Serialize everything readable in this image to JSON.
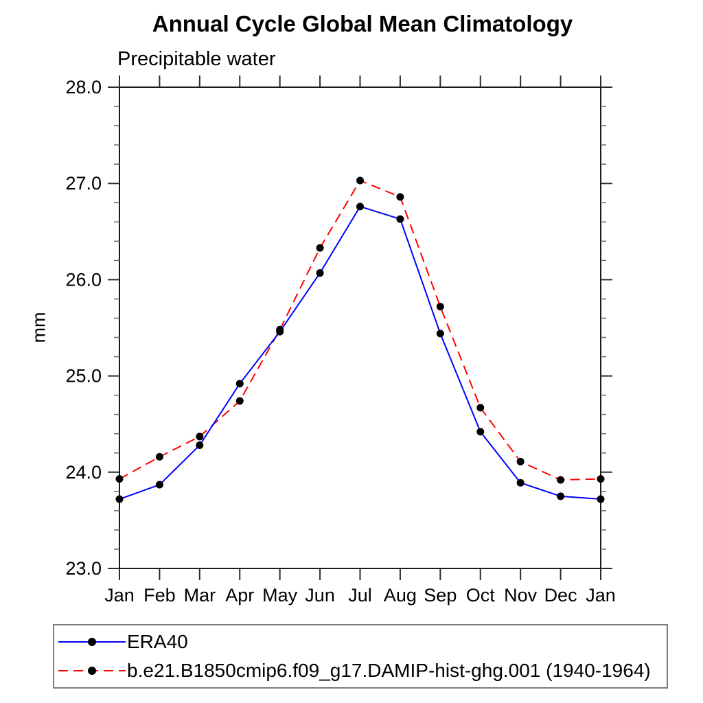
{
  "page": {
    "background": "#ffffff"
  },
  "chart_data": {
    "type": "line",
    "title": "Annual Cycle Global Mean Climatology",
    "subtitle": "Precipitable water",
    "ylabel": "mm",
    "xlabel": "",
    "x_tick_labels": [
      "Jan",
      "Feb",
      "Mar",
      "Apr",
      "May",
      "Jun",
      "Jul",
      "Aug",
      "Sep",
      "Oct",
      "Nov",
      "Dec",
      "Jan"
    ],
    "ylim": [
      23.0,
      28.0
    ],
    "y_major_step": 1.0,
    "y_minor_step": 0.2,
    "y_tick_labels": [
      "23.0",
      "24.0",
      "25.0",
      "26.0",
      "27.0",
      "28.0"
    ],
    "grid": false,
    "frame": true,
    "legend_position": "bottom-left",
    "marker_color": "#000000",
    "series": [
      {
        "name": "ERA40",
        "color": "#0000ff",
        "line_style": "solid",
        "marker": "filled-circle",
        "values": [
          23.72,
          23.87,
          24.28,
          24.92,
          25.46,
          26.07,
          26.76,
          26.63,
          25.44,
          24.42,
          23.89,
          23.75,
          23.72
        ]
      },
      {
        "name": "b.e21.B1850cmip6.f09_g17.DAMIP-hist-ghg.001 (1940-1964)",
        "color": "#ff0000",
        "line_style": "dashed",
        "marker": "filled-circle",
        "values": [
          23.93,
          24.16,
          24.37,
          24.74,
          25.48,
          26.33,
          27.03,
          26.86,
          25.72,
          24.67,
          24.11,
          23.92,
          23.93
        ]
      }
    ]
  }
}
